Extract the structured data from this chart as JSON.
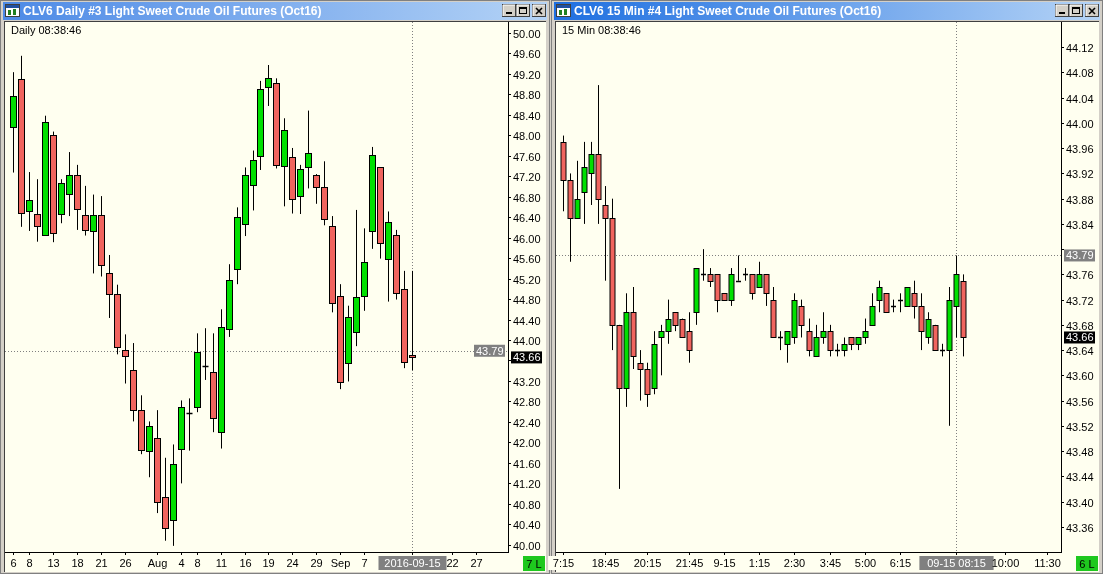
{
  "chart_data": [
    {
      "type": "candlestick",
      "title": "CLV6 Daily #3 Light Sweet Crude Oil Futures (Oct16)",
      "subtitle": "Daily 08:38:46",
      "categories": [
        "6",
        null,
        "8",
        null,
        null,
        "13",
        null,
        null,
        "18",
        null,
        null,
        "21",
        null,
        null,
        "26",
        null,
        null,
        null,
        "Aug",
        null,
        null,
        "4",
        null,
        "8",
        null,
        null,
        "11",
        null,
        null,
        "16",
        null,
        null,
        "19",
        null,
        null,
        "24",
        null,
        null,
        "29",
        null,
        null,
        "Sep",
        null,
        null,
        "7",
        null,
        null,
        null,
        null,
        null,
        "2016-09-15",
        null,
        null,
        null,
        null,
        "22",
        null,
        null,
        "27",
        null,
        null,
        null
      ],
      "ohlc": [
        [
          48.15,
          49.23,
          47.27,
          48.76
        ],
        [
          49.1,
          49.55,
          46.21,
          46.48
        ],
        [
          46.51,
          47.28,
          46.13,
          46.74
        ],
        [
          46.47,
          47.14,
          45.92,
          46.22
        ],
        [
          46.06,
          48.38,
          46.06,
          48.25
        ],
        [
          48.0,
          48.07,
          45.91,
          46.09
        ],
        [
          46.46,
          47.14,
          46.28,
          47.06
        ],
        [
          46.85,
          47.67,
          46.42,
          47.23
        ],
        [
          47.23,
          47.42,
          46.15,
          46.55
        ],
        [
          46.45,
          47.01,
          46.04,
          46.15
        ],
        [
          46.13,
          46.84,
          45.3,
          46.45
        ],
        [
          46.44,
          46.81,
          45.24,
          45.46
        ],
        [
          45.3,
          45.66,
          44.43,
          44.9
        ],
        [
          44.89,
          45.08,
          43.72,
          43.87
        ],
        [
          43.81,
          44.11,
          43.15,
          43.68
        ],
        [
          43.42,
          43.94,
          42.41,
          42.63
        ],
        [
          42.63,
          42.92,
          41.77,
          41.86
        ],
        [
          41.84,
          42.41,
          41.32,
          42.33
        ],
        [
          42.08,
          42.63,
          40.62,
          40.84
        ],
        [
          40.94,
          41.7,
          40.08,
          40.32
        ],
        [
          40.49,
          41.96,
          39.98,
          41.58
        ],
        [
          41.88,
          42.82,
          41.2,
          42.7
        ],
        [
          42.58,
          42.86,
          41.84,
          42.58
        ],
        [
          42.7,
          44.13,
          42.59,
          43.77
        ],
        [
          43.5,
          44.23,
          43.22,
          43.5
        ],
        [
          43.38,
          44.13,
          42.2,
          42.47
        ],
        [
          42.21,
          44.6,
          41.88,
          44.25
        ],
        [
          44.22,
          45.48,
          44.06,
          45.18
        ],
        [
          45.38,
          46.59,
          45.09,
          46.41
        ],
        [
          46.26,
          47.37,
          46.03,
          47.22
        ],
        [
          47.02,
          47.7,
          46.53,
          47.52
        ],
        [
          47.59,
          49.06,
          47.32,
          48.9
        ],
        [
          48.95,
          49.37,
          48.57,
          49.11
        ],
        [
          49.01,
          49.11,
          47.35,
          47.41
        ],
        [
          47.39,
          48.33,
          46.61,
          48.1
        ],
        [
          47.58,
          47.75,
          46.47,
          46.76
        ],
        [
          46.81,
          47.42,
          46.46,
          47.34
        ],
        [
          47.37,
          48.48,
          46.96,
          47.65
        ],
        [
          47.22,
          47.24,
          46.66,
          46.98
        ],
        [
          46.98,
          47.49,
          46.24,
          46.36
        ],
        [
          46.23,
          46.42,
          44.54,
          44.72
        ],
        [
          44.85,
          45.09,
          43.04,
          43.18
        ],
        [
          43.56,
          44.67,
          43.19,
          44.44
        ],
        [
          44.15,
          46.54,
          43.88,
          44.83
        ],
        [
          44.86,
          46.18,
          44.57,
          45.52
        ],
        [
          46.12,
          47.77,
          45.78,
          47.62
        ],
        [
          47.37,
          47.37,
          45.59,
          45.89
        ],
        [
          45.58,
          46.51,
          44.75,
          46.3
        ],
        [
          46.06,
          46.15,
          44.79,
          44.92
        ],
        [
          45.0,
          45.35,
          43.45,
          43.58
        ],
        [
          43.71,
          45.35,
          43.41,
          43.66
        ],
        null,
        null,
        null,
        null,
        null,
        null,
        null,
        null,
        null,
        null,
        null
      ],
      "colors": [
        "#00e000",
        "#f0645e",
        "#00e000",
        "#f0645e",
        "#00e000",
        "#f0645e",
        "#00e000",
        "#00e000",
        "#f0645e",
        "#f0645e",
        "#00e000",
        "#f0645e",
        "#f0645e",
        "#f0645e",
        "#f0645e",
        "#f0645e",
        "#f0645e",
        "#00e000",
        "#f0645e",
        "#f0645e",
        "#00e000",
        "#00e000",
        "#000000",
        "#00e000",
        "#000000",
        "#f0645e",
        "#00e000",
        "#00e000",
        "#00e000",
        "#00e000",
        "#00e000",
        "#00e000",
        "#00e000",
        "#f0645e",
        "#00e000",
        "#f0645e",
        "#00e000",
        "#00e000",
        "#f0645e",
        "#f0645e",
        "#f0645e",
        "#f0645e",
        "#00e000",
        "#00e000",
        "#00e000",
        "#00e000",
        "#f0645e",
        "#00e000",
        "#f0645e",
        "#f0645e",
        "#f0645e",
        null,
        null,
        null,
        null,
        null,
        null,
        null,
        null,
        null,
        null,
        null
      ],
      "ylim": [
        39.86,
        50.21
      ],
      "yticks": [
        {
          "value": 40,
          "label": "40.00"
        },
        {
          "value": 40.4,
          "label": "40.40"
        },
        {
          "value": 40.8,
          "label": "40.80"
        },
        {
          "value": 41.2,
          "label": "41.20"
        },
        {
          "value": 41.6,
          "label": "41.60"
        },
        {
          "value": 42,
          "label": "42.00"
        },
        {
          "value": 42.4,
          "label": "42.40"
        },
        {
          "value": 42.8,
          "label": "42.80"
        },
        {
          "value": 43.2,
          "label": "43.20"
        },
        {
          "value": 43.6,
          "label": null
        },
        {
          "value": 44,
          "label": "44.00"
        },
        {
          "value": 44.4,
          "label": "44.40"
        },
        {
          "value": 44.8,
          "label": "44.80"
        },
        {
          "value": 45.2,
          "label": "45.20"
        },
        {
          "value": 45.6,
          "label": "45.60"
        },
        {
          "value": 46,
          "label": "46.00"
        },
        {
          "value": 46.4,
          "label": "46.40"
        },
        {
          "value": 46.8,
          "label": "46.80"
        },
        {
          "value": 47.2,
          "label": "47.20"
        },
        {
          "value": 47.6,
          "label": "47.60"
        },
        {
          "value": 48,
          "label": "48.00"
        },
        {
          "value": 48.4,
          "label": "48.40"
        },
        {
          "value": 48.8,
          "label": "48.80"
        },
        {
          "value": 49.2,
          "label": "49.20"
        },
        {
          "value": 49.6,
          "label": "49.60"
        },
        {
          "value": 50,
          "label": "50.00"
        }
      ],
      "ref_lines": [
        {
          "axis": "x",
          "value": "2016-09-15",
          "color": "#808080",
          "line_style": "dotted"
        },
        {
          "axis": "y",
          "value": 43.79,
          "label": "43.79",
          "color": "#808080",
          "line_style": "dotted"
        }
      ],
      "annotations": [
        {
          "text": "43.66",
          "y": 43.66
        },
        "7 L"
      ]
    },
    {
      "type": "candlestick",
      "title": "CLV6 15 Min #4 Light Sweet Crude Oil Futures (Oct16)",
      "subtitle": "15 Min 08:38:46",
      "categories": [
        "7:15",
        null,
        null,
        null,
        null,
        null,
        "18:45",
        null,
        null,
        null,
        null,
        null,
        "20:15",
        null,
        null,
        null,
        null,
        null,
        "21:45",
        null,
        null,
        null,
        null,
        "9-15",
        null,
        null,
        null,
        null,
        "1:15",
        null,
        null,
        null,
        null,
        "2:30",
        null,
        null,
        null,
        null,
        "3:45",
        null,
        null,
        null,
        null,
        "5:00",
        null,
        null,
        null,
        null,
        "6:15",
        null,
        null,
        null,
        null,
        null,
        null,
        null,
        "09-15 08:15",
        null,
        null,
        null,
        null,
        null,
        null,
        "10:00",
        null,
        null,
        null,
        null,
        null,
        "11:30",
        null
      ],
      "ohlc": [
        [
          43.97,
          43.98,
          43.86,
          43.91
        ],
        [
          43.91,
          43.92,
          43.78,
          43.85
        ],
        [
          43.85,
          43.94,
          43.85,
          43.88
        ],
        [
          43.89,
          43.97,
          43.84,
          43.93
        ],
        [
          43.92,
          43.97,
          43.87,
          43.95
        ],
        [
          43.95,
          44.06,
          43.84,
          43.88
        ],
        [
          43.87,
          43.9,
          43.75,
          43.85
        ],
        [
          43.85,
          43.88,
          43.64,
          43.68
        ],
        [
          43.68,
          43.68,
          43.42,
          43.58
        ],
        [
          43.58,
          43.73,
          43.55,
          43.7
        ],
        [
          43.7,
          43.74,
          43.61,
          43.63
        ],
        [
          43.62,
          43.64,
          43.56,
          43.61
        ],
        [
          43.61,
          43.62,
          43.55,
          43.57
        ],
        [
          43.58,
          43.67,
          43.57,
          43.65
        ],
        [
          43.66,
          43.68,
          43.6,
          43.67
        ],
        [
          43.67,
          43.72,
          43.65,
          43.69
        ],
        [
          43.7,
          43.7,
          43.67,
          43.68
        ],
        [
          43.69,
          43.69,
          43.66,
          43.66
        ],
        [
          43.67,
          43.7,
          43.62,
          43.64
        ],
        [
          43.7,
          43.77,
          43.68,
          43.77
        ],
        [
          43.76,
          43.8,
          43.75,
          43.76
        ],
        [
          43.76,
          43.77,
          43.74,
          43.75
        ],
        [
          43.76,
          43.76,
          43.7,
          43.72
        ],
        [
          43.73,
          43.73,
          43.72,
          43.72
        ],
        [
          43.72,
          43.77,
          43.71,
          43.76
        ],
        [
          43.75,
          43.79,
          43.75,
          43.75
        ],
        [
          43.76,
          43.77,
          43.75,
          43.76
        ],
        [
          43.76,
          43.76,
          43.72,
          43.73
        ],
        [
          43.74,
          43.78,
          43.74,
          43.76
        ],
        [
          43.76,
          43.76,
          43.71,
          43.73
        ],
        [
          43.72,
          43.74,
          43.66,
          43.66
        ],
        [
          43.66,
          43.67,
          43.64,
          43.66
        ],
        [
          43.65,
          43.67,
          43.62,
          43.67
        ],
        [
          43.66,
          43.73,
          43.65,
          43.72
        ],
        [
          43.71,
          43.72,
          43.66,
          43.68
        ],
        [
          43.67,
          43.69,
          43.63,
          43.64
        ],
        [
          43.63,
          43.68,
          43.63,
          43.66
        ],
        [
          43.66,
          43.7,
          43.65,
          43.67
        ],
        [
          43.67,
          43.68,
          43.63,
          43.64
        ],
        [
          43.64,
          43.65,
          43.63,
          43.64
        ],
        [
          43.64,
          43.66,
          43.63,
          43.65
        ],
        [
          43.66,
          43.66,
          43.64,
          43.65
        ],
        [
          43.65,
          43.66,
          43.64,
          43.66
        ],
        [
          43.66,
          43.69,
          43.65,
          43.67
        ],
        [
          43.68,
          43.73,
          43.68,
          43.71
        ],
        [
          43.72,
          43.75,
          43.7,
          43.74
        ],
        [
          43.73,
          43.73,
          43.7,
          43.7
        ],
        [
          43.71,
          43.72,
          43.7,
          43.71
        ],
        [
          43.72,
          43.73,
          43.7,
          43.72
        ],
        [
          43.71,
          43.74,
          43.71,
          43.74
        ],
        [
          43.73,
          43.75,
          43.69,
          43.71
        ],
        [
          43.71,
          43.73,
          43.64,
          43.67
        ],
        [
          43.66,
          43.7,
          43.65,
          43.69
        ],
        [
          43.68,
          43.68,
          43.64,
          43.64
        ],
        [
          43.64,
          43.65,
          43.63,
          43.64
        ],
        [
          43.64,
          43.74,
          43.52,
          43.72
        ],
        [
          43.71,
          43.79,
          43.66,
          43.76
        ],
        [
          43.75,
          43.76,
          43.63,
          43.66
        ],
        null,
        null,
        null,
        null,
        null,
        null,
        null,
        null,
        null,
        null,
        null,
        null,
        null
      ],
      "colors": [
        "#f0645e",
        "#f0645e",
        "#00e000",
        "#00e000",
        "#00e000",
        "#f0645e",
        "#f0645e",
        "#f0645e",
        "#f0645e",
        "#00e000",
        "#f0645e",
        "#f0645e",
        "#f0645e",
        "#00e000",
        "#00e000",
        "#00e000",
        "#f0645e",
        "#f0645e",
        "#f0645e",
        "#00e000",
        "#000000",
        "#f0645e",
        "#f0645e",
        "#f0645e",
        "#00e000",
        "#000000",
        "#000000",
        "#f0645e",
        "#00e000",
        "#f0645e",
        "#f0645e",
        "#000000",
        "#00e000",
        "#00e000",
        "#f0645e",
        "#f0645e",
        "#00e000",
        "#00e000",
        "#f0645e",
        "#000000",
        "#00e000",
        "#f0645e",
        "#00e000",
        "#00e000",
        "#00e000",
        "#00e000",
        "#f0645e",
        "#000000",
        "#000000",
        "#00e000",
        "#f0645e",
        "#f0645e",
        "#00e000",
        "#f0645e",
        "#000000",
        "#00e000",
        "#00e000",
        "#f0645e",
        null,
        null,
        null,
        null,
        null,
        null,
        null,
        null,
        null,
        null,
        null,
        null,
        null
      ],
      "ylim": [
        43.32,
        44.16
      ],
      "yticks": [
        {
          "value": 43.36,
          "label": "43.36"
        },
        {
          "value": 43.4,
          "label": "43.40"
        },
        {
          "value": 43.44,
          "label": "43.44"
        },
        {
          "value": 43.48,
          "label": "43.48"
        },
        {
          "value": 43.52,
          "label": "43.52"
        },
        {
          "value": 43.56,
          "label": "43.56"
        },
        {
          "value": 43.6,
          "label": "43.60"
        },
        {
          "value": 43.64,
          "label": "43.64"
        },
        {
          "value": 43.68,
          "label": "43.68"
        },
        {
          "value": 43.72,
          "label": "43.72"
        },
        {
          "value": 43.76,
          "label": "43.76"
        },
        {
          "value": 43.8,
          "label": null
        },
        {
          "value": 43.84,
          "label": "43.84"
        },
        {
          "value": 43.88,
          "label": "43.88"
        },
        {
          "value": 43.92,
          "label": "43.92"
        },
        {
          "value": 43.96,
          "label": "43.96"
        },
        {
          "value": 44,
          "label": "44.00"
        },
        {
          "value": 44.04,
          "label": "44.04"
        },
        {
          "value": 44.08,
          "label": "44.08"
        },
        {
          "value": 44.12,
          "label": "44.12"
        }
      ],
      "ref_lines": [
        {
          "axis": "x",
          "value": "09-15 08:15",
          "color": "#808080",
          "line_style": "dotted"
        },
        {
          "axis": "y",
          "value": 43.79,
          "label": "43.79",
          "color": "#808080",
          "line_style": "dotted"
        }
      ],
      "annotations": [
        {
          "text": "43.66",
          "y": 43.66
        },
        "6 L"
      ]
    }
  ]
}
